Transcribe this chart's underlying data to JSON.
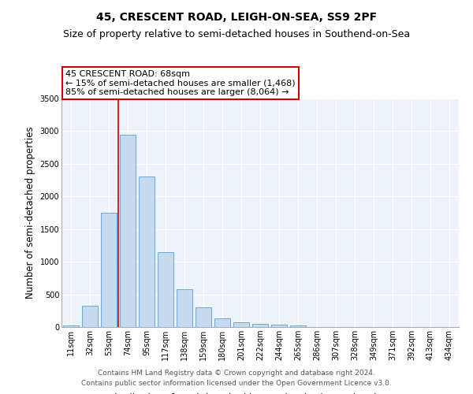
{
  "title": "45, CRESCENT ROAD, LEIGH-ON-SEA, SS9 2PF",
  "subtitle": "Size of property relative to semi-detached houses in Southend-on-Sea",
  "xlabel": "Distribution of semi-detached houses by size in Southend-on-Sea",
  "ylabel": "Number of semi-detached properties",
  "footnote1": "Contains HM Land Registry data © Crown copyright and database right 2024.",
  "footnote2": "Contains public sector information licensed under the Open Government Licence v3.0.",
  "annotation_title": "45 CRESCENT ROAD: 68sqm",
  "annotation_line2": "← 15% of semi-detached houses are smaller (1,468)",
  "annotation_line3": "85% of semi-detached houses are larger (8,064) →",
  "bar_labels": [
    "11sqm",
    "32sqm",
    "53sqm",
    "74sqm",
    "95sqm",
    "117sqm",
    "138sqm",
    "159sqm",
    "180sqm",
    "201sqm",
    "222sqm",
    "244sqm",
    "265sqm",
    "286sqm",
    "307sqm",
    "328sqm",
    "349sqm",
    "371sqm",
    "392sqm",
    "413sqm",
    "434sqm"
  ],
  "bar_values": [
    25,
    325,
    1750,
    2950,
    2300,
    1150,
    575,
    300,
    130,
    75,
    50,
    35,
    30,
    0,
    0,
    0,
    0,
    0,
    0,
    0,
    0
  ],
  "bar_color": "#c5d9ef",
  "bar_edge_color": "#6aaad4",
  "vline_x": 2.5,
  "vline_color": "#cc0000",
  "annotation_box_color": "#cc0000",
  "ylim": [
    0,
    3500
  ],
  "yticks": [
    0,
    500,
    1000,
    1500,
    2000,
    2500,
    3000,
    3500
  ],
  "bg_color": "#eef2f9",
  "grid_color": "#ffffff",
  "title_fontsize": 10,
  "subtitle_fontsize": 9,
  "axis_label_fontsize": 8.5,
  "tick_fontsize": 7,
  "footnote_fontsize": 6.5,
  "annotation_fontsize": 8
}
